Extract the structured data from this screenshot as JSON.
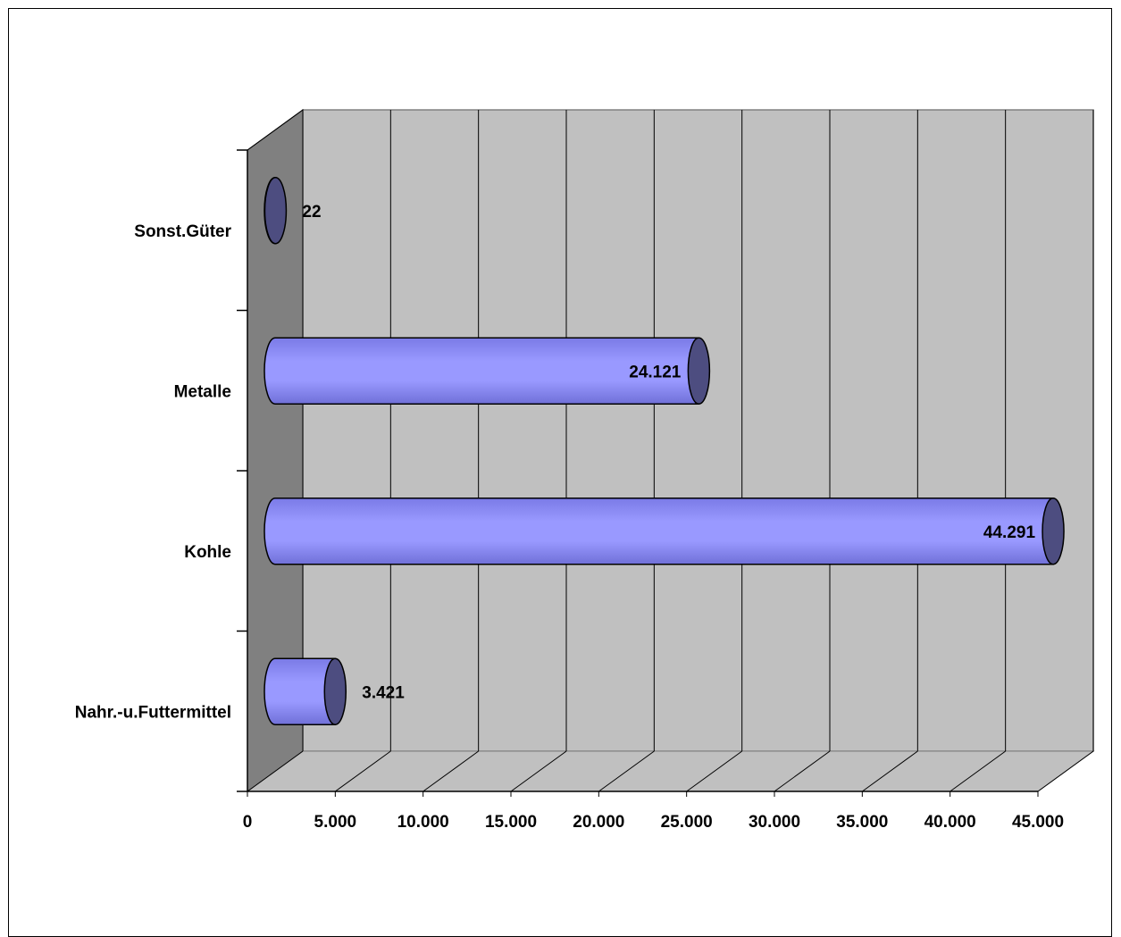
{
  "chart_data": {
    "type": "bar",
    "orientation": "horizontal",
    "style": "3d-cylinder",
    "title": "",
    "xlabel": "",
    "ylabel": "",
    "categories": [
      "Nahr.-u.Futtermittel",
      "Kohle",
      "Metalle",
      "Sonst.Güter"
    ],
    "values": [
      3421,
      44291,
      24121,
      22
    ],
    "value_labels": [
      "3.421",
      "44.291",
      "24.121",
      "22"
    ],
    "xlim": [
      0,
      45000
    ],
    "xticks": [
      0,
      5000,
      10000,
      15000,
      20000,
      25000,
      30000,
      35000,
      40000,
      45000
    ],
    "xtick_labels": [
      "0",
      "5.000",
      "10.000",
      "15.000",
      "20.000",
      "25.000",
      "30.000",
      "35.000",
      "40.000",
      "45.000"
    ],
    "grid": true,
    "legend": "none",
    "colors": {
      "bar": "#9999ff",
      "bar_end": "#4d4d80",
      "wall": "#c0c0c0",
      "side_wall": "#808080",
      "floor": "#c0c0c0"
    }
  }
}
